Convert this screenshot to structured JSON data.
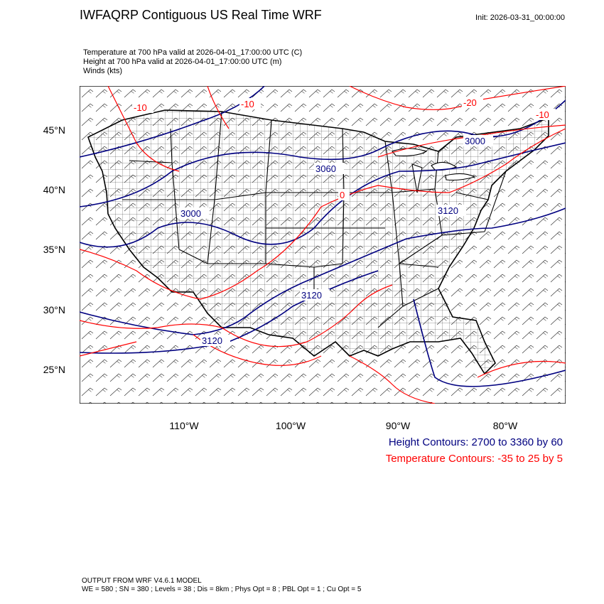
{
  "header": {
    "title": "IWFAQRP Contiguous US Real Time WRF",
    "init": "Init: 2026-03-31_00:00:00"
  },
  "fields": [
    "Temperature at 700 hPa valid at 2026-04-01_17:00:00 UTC   (C)",
    "Height at 700 hPa valid at 2026-04-01_17:00:00 UTC   (m)",
    "Winds   (kts)"
  ],
  "axes": {
    "lat_labels": [
      "45°N",
      "40°N",
      "35°N",
      "30°N",
      "25°N"
    ],
    "lon_labels": [
      "110°W",
      "100°W",
      "90°W",
      "80°W"
    ]
  },
  "contour_labels": {
    "height": [
      "3000",
      "3060",
      "3120",
      "3000",
      "3120",
      "3120"
    ],
    "temperature": [
      "-10",
      "-10",
      "-20",
      "-10",
      "0"
    ]
  },
  "legend": {
    "height": "Height Contours: 2700 to 3360 by 60",
    "temperature": "Temperature Contours: -35 to 25 by 5"
  },
  "colors": {
    "height_contour": "#000080",
    "temperature_contour": "#ff0000",
    "borders": "#000000"
  },
  "footer": [
    "OUTPUT FROM WRF V4.6.1 MODEL",
    "WE = 580 ; SN = 380 ; Levels = 38 ; Dis = 8km ; Phys Opt = 8 ; PBL Opt = 1 ; Cu Opt = 5"
  ]
}
